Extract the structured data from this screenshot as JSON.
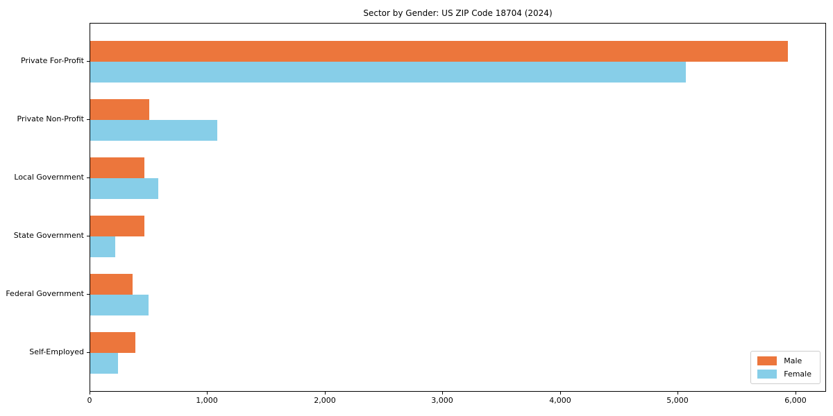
{
  "chart_data": {
    "type": "bar",
    "orientation": "horizontal",
    "title": "Sector by Gender: US ZIP Code 18704 (2024)",
    "categories": [
      "Private For-Profit",
      "Private Non-Profit",
      "Local Government",
      "State Government",
      "Federal Government",
      "Self-Employed"
    ],
    "series": [
      {
        "name": "Male",
        "color": "#ec763c",
        "values": [
          5940,
          500,
          460,
          460,
          360,
          385
        ]
      },
      {
        "name": "Female",
        "color": "#87cee8",
        "values": [
          5070,
          1080,
          580,
          210,
          495,
          235
        ]
      }
    ],
    "xlabel": "",
    "ylabel": "",
    "xlim": [
      0,
      6260
    ],
    "x_ticks": [
      0,
      1000,
      2000,
      3000,
      4000,
      5000,
      6000
    ],
    "x_tick_labels": [
      "0",
      "1,000",
      "2,000",
      "3,000",
      "4,000",
      "5,000",
      "6,000"
    ],
    "grid": false,
    "legend": {
      "position": "lower right"
    }
  },
  "colors": {
    "male": "#ec763c",
    "female": "#87cee8",
    "spine": "#000000",
    "background": "#ffffff",
    "legend_border": "#cccccc"
  }
}
